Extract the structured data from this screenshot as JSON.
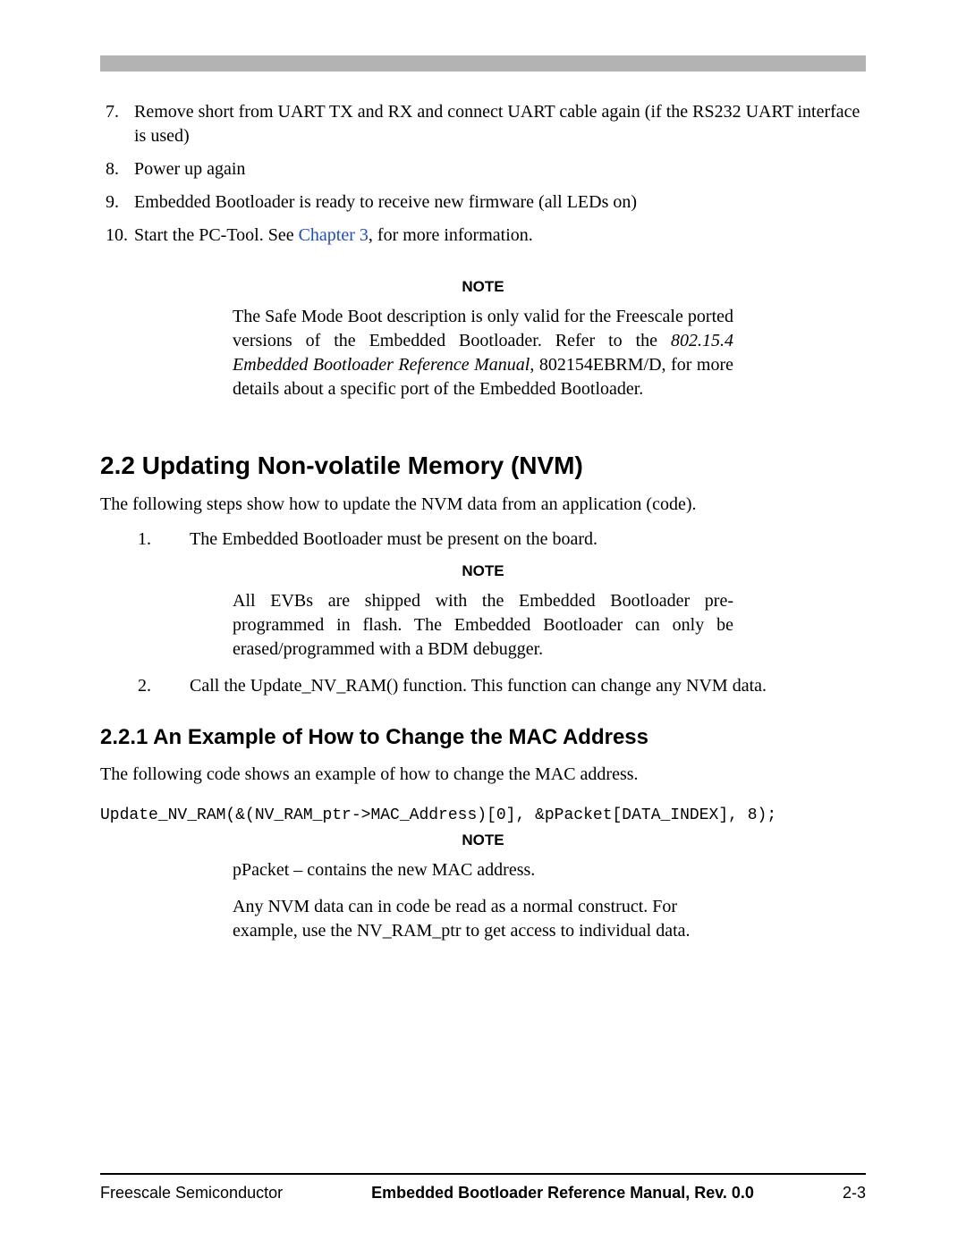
{
  "colors": {
    "top_rule": "#b3b3b3",
    "text": "#000000",
    "link": "#1a4bd6",
    "footer_rule": "#000000",
    "background": "#ffffff"
  },
  "list7": {
    "i7_num": "7.",
    "i7_text": "Remove short from UART TX and RX and connect UART cable again (if the RS232 UART interface is used)",
    "i8_num": "8.",
    "i8_text": "Power up again",
    "i9_num": "9.",
    "i9_text": "Embedded Bootloader is ready to receive new firmware (all LEDs on)",
    "i10_num": "10.",
    "i10_prefix": "Start the PC-Tool. See ",
    "i10_link": "Chapter 3",
    "i10_suffix": ", for more information."
  },
  "note1": {
    "label": "NOTE",
    "prefix": "The Safe Mode Boot description is only valid for the Freescale ported versions of the Embedded Bootloader. Refer to the ",
    "italic": "802.15.4 Embedded Bootloader Reference Manual",
    "suffix": ", 802154EBRM/D, for more details about a specific port of the Embedded Bootloader."
  },
  "section22": {
    "heading": "2.2  Updating Non-volatile Memory (NVM)",
    "intro": "The following steps show how to update the NVM data from an application (code).",
    "step1_num": "1.",
    "step1_text": "The Embedded Bootloader must be present on the board.",
    "note_label": "NOTE",
    "note_text": "All EVBs are shipped with the Embedded Bootloader pre-programmed in flash. The Embedded Bootloader can only be erased/programmed with a BDM debugger.",
    "step2_num": "2.",
    "step2_text": "Call the Update_NV_RAM() function. This function can change any NVM data."
  },
  "section221": {
    "heading": "2.2.1 An Example of How to Change the MAC Address",
    "intro": "The following code shows an example of how to change the MAC address.",
    "code": "Update_NV_RAM(&(NV_RAM_ptr->MAC_Address)[0], &pPacket[DATA_INDEX], 8);",
    "note_label": "NOTE",
    "note_p1": "pPacket – contains the new MAC address.",
    "note_p2": "Any NVM data can in code be read as a normal construct. For example, use the NV_RAM_ptr to get access to individual data."
  },
  "footer": {
    "left": "Freescale Semiconductor",
    "center": "Embedded Bootloader Reference Manual, Rev. 0.0",
    "right": "2-3"
  }
}
